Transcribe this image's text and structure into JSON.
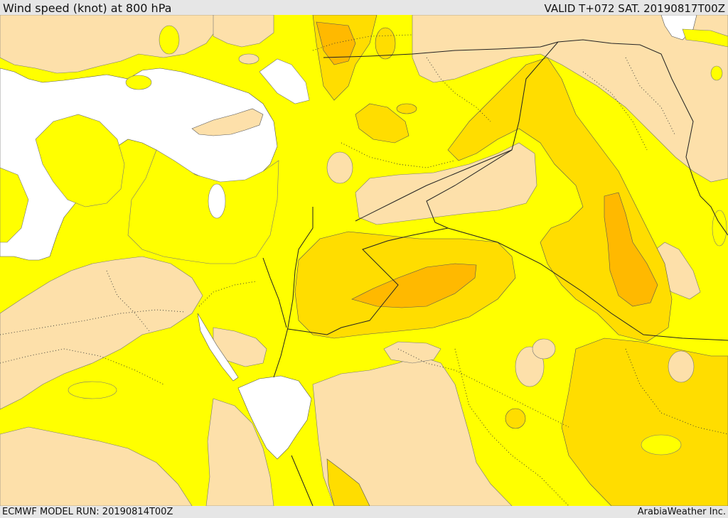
{
  "header": {
    "title": "Wind speed (knot) at 800 hPa",
    "valid": "VALID T+072 SAT. 20190817T00Z"
  },
  "footer": {
    "model_run": "ECMWF MODEL RUN: 20190814T00Z",
    "credit": "ArabiaWeather Inc."
  },
  "map": {
    "colors": {
      "sea": "#ffffff",
      "speed_low": "#fde0aa",
      "speed_mid": "#ffff00",
      "speed_high": "#ffdd00",
      "speed_higher": "#ffb900"
    }
  }
}
